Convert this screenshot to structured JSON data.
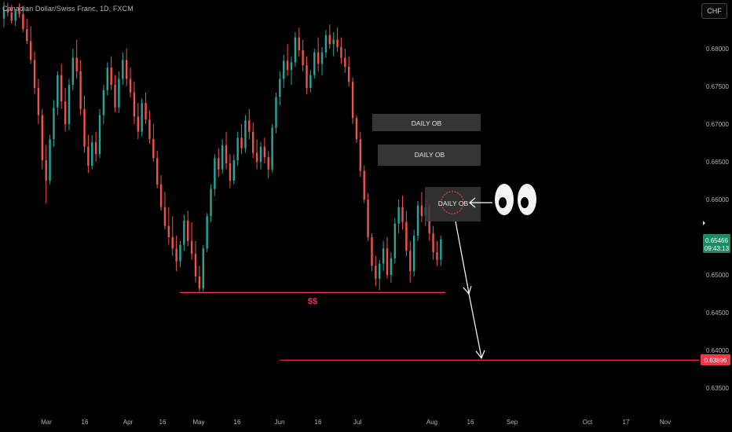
{
  "header": {
    "title": "Canadian Dollar/Swiss Franc, 1D, FXCM",
    "currency": "CHF"
  },
  "price_scale": {
    "ticks": [
      "0.68000",
      "0.67500",
      "0.67000",
      "0.66500",
      "0.66000",
      "0.65500",
      "0.65000",
      "0.64500",
      "0.64000",
      "0.63500"
    ],
    "current_price": "0.65466",
    "countdown": "09:43:13",
    "target_price": "0.63896"
  },
  "time_axis": {
    "labels": [
      "Mar",
      "16",
      "Apr",
      "16",
      "May",
      "16",
      "Jun",
      "16",
      "Jul",
      "Aug",
      "16",
      "Sep",
      "Oct",
      "17",
      "Nov"
    ]
  },
  "annotations": {
    "ob_labels": [
      "DAILY OB",
      "DAILY OB",
      "DAILY OB"
    ],
    "liquidity_label": "$$",
    "eyes_icon": "eyes-emoji"
  },
  "colors": {
    "up": "#26a69a",
    "down": "#ef5350",
    "line": "#f23645",
    "text": "#b2b5be",
    "ob_box": "#3a3a3a",
    "current_badge": "#1d8a67",
    "target_badge": "#f23645"
  },
  "chart_data": {
    "type": "candlestick",
    "title": "Canadian Dollar/Swiss Franc, 1D, FXCM",
    "ylim": [
      0.633,
      0.6862
    ],
    "candles_day_index_start": 0,
    "candles": [
      [
        0.684,
        0.6862,
        0.6828,
        0.6852
      ],
      [
        0.6852,
        0.6861,
        0.6843,
        0.6848
      ],
      [
        0.6848,
        0.6858,
        0.6833,
        0.6837
      ],
      [
        0.6837,
        0.6852,
        0.683,
        0.685
      ],
      [
        0.685,
        0.686,
        0.6841,
        0.6846
      ],
      [
        0.6846,
        0.6856,
        0.6822,
        0.6826
      ],
      [
        0.6826,
        0.684,
        0.6806,
        0.681
      ],
      [
        0.681,
        0.683,
        0.678,
        0.6785
      ],
      [
        0.6785,
        0.6796,
        0.674,
        0.6748
      ],
      [
        0.6748,
        0.676,
        0.67,
        0.6712
      ],
      [
        0.6712,
        0.672,
        0.664,
        0.6652
      ],
      [
        0.6652,
        0.6672,
        0.6595,
        0.6625
      ],
      [
        0.6625,
        0.6686,
        0.662,
        0.668
      ],
      [
        0.668,
        0.6732,
        0.667,
        0.6722
      ],
      [
        0.6722,
        0.677,
        0.6712,
        0.6765
      ],
      [
        0.6765,
        0.678,
        0.672,
        0.673
      ],
      [
        0.673,
        0.6748,
        0.669,
        0.67
      ],
      [
        0.67,
        0.676,
        0.6692,
        0.6752
      ],
      [
        0.6752,
        0.68,
        0.6745,
        0.6788
      ],
      [
        0.6788,
        0.6812,
        0.676,
        0.677
      ],
      [
        0.677,
        0.6785,
        0.6712,
        0.672
      ],
      [
        0.672,
        0.6738,
        0.6662,
        0.667
      ],
      [
        0.667,
        0.6686,
        0.6635,
        0.6645
      ],
      [
        0.6645,
        0.6685,
        0.664,
        0.6676
      ],
      [
        0.6676,
        0.669,
        0.665,
        0.666
      ],
      [
        0.666,
        0.672,
        0.6655,
        0.6712
      ],
      [
        0.6712,
        0.6752,
        0.67,
        0.6745
      ],
      [
        0.6745,
        0.6782,
        0.6738,
        0.6775
      ],
      [
        0.6775,
        0.679,
        0.6745,
        0.6752
      ],
      [
        0.6752,
        0.6765,
        0.6716,
        0.6722
      ],
      [
        0.6722,
        0.677,
        0.6715,
        0.676
      ],
      [
        0.676,
        0.6795,
        0.6752,
        0.6785
      ],
      [
        0.6785,
        0.68,
        0.675,
        0.676
      ],
      [
        0.676,
        0.6775,
        0.6735,
        0.6742
      ],
      [
        0.6742,
        0.6756,
        0.67,
        0.671
      ],
      [
        0.671,
        0.6728,
        0.668,
        0.669
      ],
      [
        0.669,
        0.6734,
        0.6684,
        0.6728
      ],
      [
        0.6728,
        0.6742,
        0.67,
        0.6706
      ],
      [
        0.6706,
        0.6718,
        0.6674,
        0.668
      ],
      [
        0.668,
        0.67,
        0.665,
        0.6655
      ],
      [
        0.6655,
        0.6665,
        0.6615,
        0.662
      ],
      [
        0.662,
        0.6632,
        0.6585,
        0.659
      ],
      [
        0.659,
        0.661,
        0.656,
        0.6565
      ],
      [
        0.6565,
        0.659,
        0.654,
        0.655
      ],
      [
        0.655,
        0.6578,
        0.6525,
        0.6535
      ],
      [
        0.6535,
        0.6552,
        0.6505,
        0.6518
      ],
      [
        0.6518,
        0.6545,
        0.651,
        0.654
      ],
      [
        0.654,
        0.658,
        0.6532,
        0.6572
      ],
      [
        0.6572,
        0.6585,
        0.6538,
        0.6545
      ],
      [
        0.6545,
        0.657,
        0.652,
        0.6528
      ],
      [
        0.6528,
        0.6545,
        0.649,
        0.6498
      ],
      [
        0.6498,
        0.6512,
        0.6478,
        0.6482
      ],
      [
        0.6482,
        0.654,
        0.6478,
        0.6535
      ],
      [
        0.6535,
        0.6582,
        0.653,
        0.6578
      ],
      [
        0.6578,
        0.662,
        0.657,
        0.6614
      ],
      [
        0.6614,
        0.666,
        0.6605,
        0.6655
      ],
      [
        0.6655,
        0.6668,
        0.663,
        0.664
      ],
      [
        0.664,
        0.668,
        0.6634,
        0.6672
      ],
      [
        0.6672,
        0.669,
        0.664,
        0.6648
      ],
      [
        0.6648,
        0.666,
        0.6615,
        0.6625
      ],
      [
        0.6625,
        0.666,
        0.662,
        0.6652
      ],
      [
        0.6652,
        0.669,
        0.6645,
        0.6682
      ],
      [
        0.6682,
        0.67,
        0.666,
        0.6668
      ],
      [
        0.6668,
        0.6712,
        0.6662,
        0.6705
      ],
      [
        0.6705,
        0.672,
        0.668,
        0.669
      ],
      [
        0.669,
        0.6702,
        0.6655,
        0.6662
      ],
      [
        0.6662,
        0.668,
        0.664,
        0.665
      ],
      [
        0.665,
        0.6676,
        0.664,
        0.667
      ],
      [
        0.667,
        0.6682,
        0.6648,
        0.6656
      ],
      [
        0.6656,
        0.6664,
        0.6628,
        0.664
      ],
      [
        0.664,
        0.67,
        0.6636,
        0.6695
      ],
      [
        0.6695,
        0.6742,
        0.6688,
        0.6736
      ],
      [
        0.6736,
        0.677,
        0.6725,
        0.676
      ],
      [
        0.676,
        0.6792,
        0.6748,
        0.6784
      ],
      [
        0.6784,
        0.6806,
        0.6764,
        0.6772
      ],
      [
        0.6772,
        0.679,
        0.6752,
        0.6782
      ],
      [
        0.6782,
        0.6822,
        0.6776,
        0.6815
      ],
      [
        0.6815,
        0.6828,
        0.679,
        0.6798
      ],
      [
        0.6798,
        0.6812,
        0.677,
        0.6778
      ],
      [
        0.6778,
        0.679,
        0.674,
        0.6748
      ],
      [
        0.6748,
        0.6772,
        0.6742,
        0.6765
      ],
      [
        0.6765,
        0.68,
        0.676,
        0.6795
      ],
      [
        0.6795,
        0.6815,
        0.677,
        0.678
      ],
      [
        0.678,
        0.6802,
        0.6765,
        0.6795
      ],
      [
        0.6795,
        0.6825,
        0.6788,
        0.6818
      ],
      [
        0.6818,
        0.6832,
        0.68,
        0.6806
      ],
      [
        0.6806,
        0.6822,
        0.679,
        0.6812
      ],
      [
        0.6812,
        0.6828,
        0.6796,
        0.6802
      ],
      [
        0.6802,
        0.6815,
        0.678,
        0.6788
      ],
      [
        0.6788,
        0.68,
        0.6768,
        0.6776
      ],
      [
        0.6776,
        0.679,
        0.675,
        0.6756
      ],
      [
        0.6756,
        0.6762,
        0.67,
        0.6708
      ],
      [
        0.6708,
        0.6712,
        0.6675,
        0.668
      ],
      [
        0.668,
        0.669,
        0.663,
        0.6638
      ],
      [
        0.6638,
        0.6645,
        0.6595,
        0.66
      ],
      [
        0.66,
        0.6608,
        0.6545,
        0.655
      ],
      [
        0.655,
        0.6555,
        0.6505,
        0.6512
      ],
      [
        0.6512,
        0.6525,
        0.6485,
        0.6495
      ],
      [
        0.6495,
        0.652,
        0.648,
        0.6515
      ],
      [
        0.6515,
        0.6545,
        0.6505,
        0.6535
      ],
      [
        0.6535,
        0.655,
        0.6495,
        0.65
      ],
      [
        0.65,
        0.653,
        0.649,
        0.6522
      ],
      [
        0.6522,
        0.6575,
        0.6515,
        0.6568
      ],
      [
        0.6568,
        0.66,
        0.6555,
        0.659
      ],
      [
        0.659,
        0.6605,
        0.656,
        0.657
      ],
      [
        0.657,
        0.6585,
        0.6525,
        0.6532
      ],
      [
        0.6532,
        0.6545,
        0.649,
        0.6505
      ],
      [
        0.6505,
        0.656,
        0.6498,
        0.6552
      ],
      [
        0.6552,
        0.6598,
        0.6545,
        0.6592
      ],
      [
        0.6592,
        0.661,
        0.657,
        0.6578
      ],
      [
        0.6578,
        0.66,
        0.6565,
        0.659
      ],
      [
        0.659,
        0.6595,
        0.6545,
        0.6555
      ],
      [
        0.6555,
        0.6565,
        0.652,
        0.653
      ],
      [
        0.653,
        0.6545,
        0.6512,
        0.652
      ],
      [
        0.652,
        0.6552,
        0.6512,
        0.6547
      ]
    ],
    "horizontal_lines": [
      {
        "price": 0.64765,
        "label": "$$",
        "from_index": 47,
        "to_index": 113
      },
      {
        "price": 0.63896,
        "label": "0.63896",
        "from_index": 72,
        "to_index": 175
      }
    ],
    "order_blocks": [
      {
        "label": "DAILY OB",
        "top": 0.6711,
        "bottom": 0.6689
      },
      {
        "label": "DAILY OB",
        "top": 0.6672,
        "bottom": 0.6646
      },
      {
        "label": "DAILY OB",
        "top": 0.6615,
        "bottom": 0.6572
      }
    ],
    "current_price": 0.65466
  }
}
